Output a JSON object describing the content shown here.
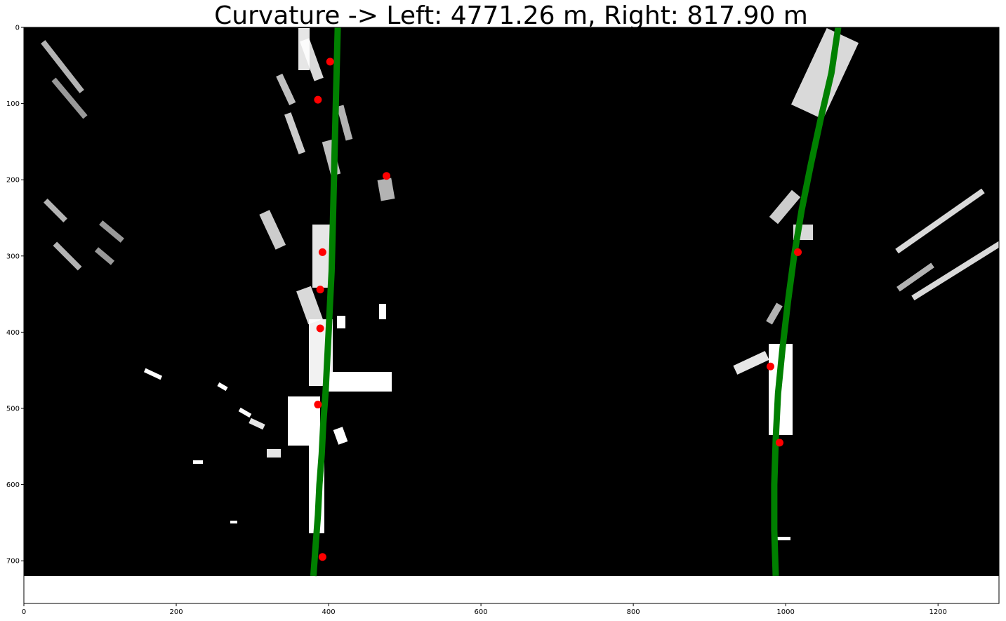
{
  "chart_data": {
    "type": "scatter",
    "title": "Curvature -> Left: 4771.26 m, Right: 817.90 m",
    "xlabel": "",
    "ylabel": "",
    "xlim": [
      0,
      1280
    ],
    "ylim": [
      756,
      0
    ],
    "image_height": 720,
    "x_ticks": [
      0,
      200,
      400,
      600,
      800,
      1000,
      1200
    ],
    "y_ticks": [
      0,
      100,
      200,
      300,
      400,
      500,
      600,
      700
    ],
    "grid": false,
    "colors": {
      "fit_line": "#008000",
      "window_points": "#ff0000",
      "background": "#000000",
      "pixels": "#ffffff"
    },
    "series": [
      {
        "type": "line",
        "points": [
          [
            380,
            720
          ],
          [
            383,
            680
          ],
          [
            386,
            640
          ],
          [
            388,
            600
          ],
          [
            391,
            560
          ],
          [
            393,
            520
          ],
          [
            396,
            480
          ],
          [
            398,
            440
          ],
          [
            400,
            400
          ],
          [
            402,
            360
          ],
          [
            404,
            320
          ],
          [
            405,
            280
          ],
          [
            406,
            240
          ],
          [
            407,
            200
          ],
          [
            408,
            160
          ],
          [
            409,
            120
          ],
          [
            410,
            80
          ],
          [
            411,
            40
          ],
          [
            412,
            0
          ]
        ]
      },
      {
        "type": "line",
        "points": [
          [
            987,
            720
          ],
          [
            985,
            660
          ],
          [
            985,
            600
          ],
          [
            987,
            540
          ],
          [
            990,
            480
          ],
          [
            996,
            420
          ],
          [
            1003,
            360
          ],
          [
            1011,
            300
          ],
          [
            1021,
            240
          ],
          [
            1033,
            180
          ],
          [
            1046,
            120
          ],
          [
            1060,
            60
          ],
          [
            1069,
            0
          ]
        ]
      },
      {
        "type": "scatter",
        "points": [
          [
            402,
            45
          ],
          [
            386,
            95
          ],
          [
            476,
            195
          ],
          [
            392,
            295
          ],
          [
            389,
            344
          ],
          [
            389,
            395
          ],
          [
            386,
            495
          ],
          [
            392,
            695
          ],
          [
            1016,
            295
          ],
          [
            980,
            445
          ],
          [
            992,
            545
          ]
        ]
      }
    ]
  }
}
